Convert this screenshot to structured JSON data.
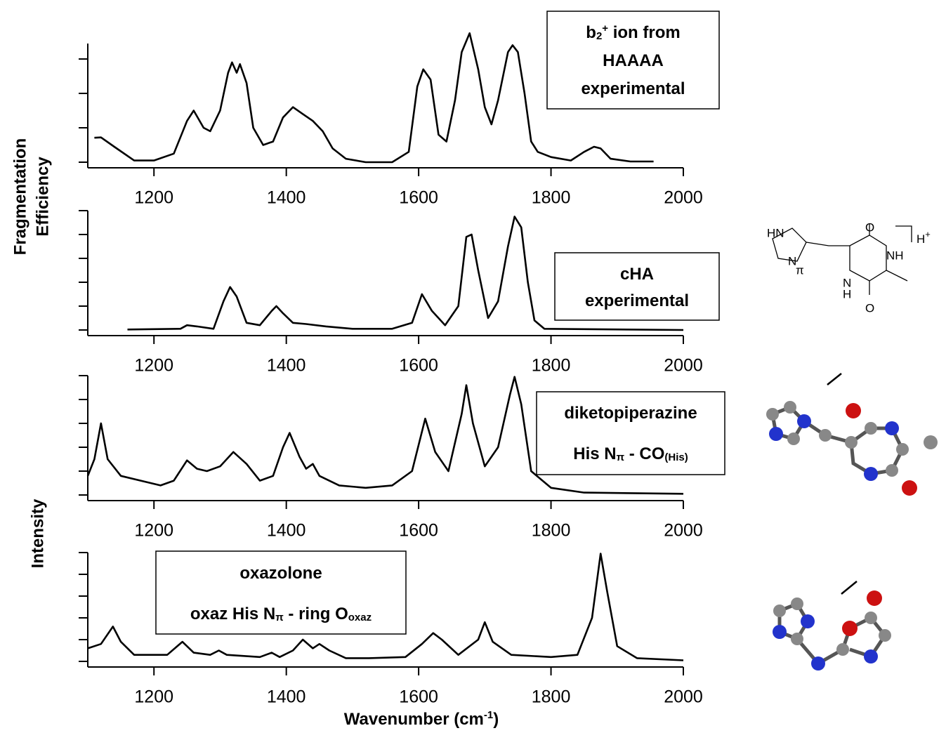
{
  "chart_data": [
    {
      "type": "line",
      "ylabel": [
        "Fragmentation",
        "Efficiency"
      ],
      "annotation": [
        [
          {
            "text": "b"
          },
          {
            "text": "2",
            "style": "sub"
          },
          {
            "text": "+",
            "style": "sup"
          },
          {
            "text": " ion from"
          }
        ],
        [
          {
            "text": "HAAAA"
          }
        ],
        [
          {
            "text": "experimental"
          }
        ]
      ],
      "xlim": [
        1100,
        2000
      ],
      "xticks": [
        1200,
        1400,
        1600,
        1800,
        2000
      ],
      "ylim": [
        0,
        3.45
      ],
      "yticks": [
        0,
        1,
        2,
        3
      ],
      "color": "#000000",
      "x": [
        1110,
        1120,
        1140,
        1170,
        1200,
        1230,
        1250,
        1260,
        1275,
        1285,
        1300,
        1312,
        1318,
        1325,
        1330,
        1340,
        1350,
        1365,
        1380,
        1395,
        1410,
        1425,
        1440,
        1455,
        1470,
        1490,
        1520,
        1560,
        1585,
        1598,
        1607,
        1618,
        1630,
        1642,
        1655,
        1665,
        1677,
        1690,
        1700,
        1710,
        1720,
        1735,
        1742,
        1750,
        1760,
        1770,
        1780,
        1800,
        1830,
        1850,
        1865,
        1875,
        1890,
        1920,
        1955
      ],
      "values": [
        0.71,
        0.72,
        0.45,
        0.05,
        0.05,
        0.25,
        1.2,
        1.5,
        1.0,
        0.9,
        1.5,
        2.6,
        2.9,
        2.6,
        2.85,
        2.3,
        1.0,
        0.5,
        0.6,
        1.3,
        1.6,
        1.4,
        1.2,
        0.9,
        0.4,
        0.1,
        0.0,
        0.0,
        0.3,
        2.2,
        2.7,
        2.4,
        0.8,
        0.6,
        1.8,
        3.2,
        3.75,
        2.7,
        1.6,
        1.1,
        1.8,
        3.2,
        3.4,
        3.2,
        2.0,
        0.6,
        0.3,
        0.15,
        0.05,
        0.3,
        0.45,
        0.4,
        0.1,
        0.02,
        0.02
      ]
    },
    {
      "type": "line",
      "annotation": [
        [
          {
            "text": "cHA"
          }
        ],
        [
          {
            "text": "experimental"
          }
        ]
      ],
      "xlim": [
        1100,
        2000
      ],
      "xticks": [
        1200,
        1400,
        1600,
        1800,
        2000
      ],
      "ylim": [
        0,
        5
      ],
      "yticks": [
        0,
        1,
        2,
        3,
        4,
        5
      ],
      "color": "#000000",
      "x": [
        1160,
        1240,
        1250,
        1265,
        1290,
        1305,
        1315,
        1325,
        1340,
        1360,
        1378,
        1385,
        1395,
        1410,
        1430,
        1460,
        1500,
        1560,
        1590,
        1605,
        1620,
        1640,
        1660,
        1672,
        1680,
        1690,
        1705,
        1720,
        1735,
        1745,
        1755,
        1765,
        1775,
        1790,
        2000
      ],
      "values": [
        0.02,
        0.05,
        0.2,
        0.15,
        0.05,
        1.2,
        1.8,
        1.4,
        0.3,
        0.2,
        0.8,
        1.0,
        0.7,
        0.3,
        0.25,
        0.15,
        0.05,
        0.05,
        0.3,
        1.5,
        0.8,
        0.2,
        1.0,
        3.9,
        4.0,
        2.5,
        0.5,
        1.2,
        3.5,
        4.75,
        4.3,
        2.0,
        0.4,
        0.05,
        0.0
      ]
    },
    {
      "type": "line",
      "ylabel": [
        "Intensity"
      ],
      "annotation": [
        [
          {
            "text": "diketopiperazine"
          }
        ],
        [
          {
            "text": "His N"
          },
          {
            "text": "π",
            "style": "sub"
          },
          {
            "text": " - CO"
          },
          {
            "text": "(His)",
            "style": "sub"
          }
        ]
      ],
      "xlim": [
        1100,
        2000
      ],
      "xticks": [
        1200,
        1400,
        1600,
        1800,
        2000
      ],
      "ylim": [
        0,
        5
      ],
      "yticks": [
        0,
        1,
        2,
        3,
        4,
        5
      ],
      "color": "#000000",
      "x": [
        1100,
        1110,
        1120,
        1130,
        1150,
        1180,
        1210,
        1230,
        1250,
        1265,
        1280,
        1300,
        1320,
        1340,
        1360,
        1380,
        1395,
        1405,
        1420,
        1430,
        1440,
        1450,
        1480,
        1520,
        1560,
        1590,
        1610,
        1625,
        1645,
        1665,
        1672,
        1682,
        1700,
        1720,
        1738,
        1745,
        1755,
        1770,
        1800,
        1850,
        2000
      ],
      "values": [
        0.8,
        1.5,
        3.0,
        1.5,
        0.8,
        0.6,
        0.4,
        0.6,
        1.45,
        1.1,
        1.0,
        1.2,
        1.8,
        1.3,
        0.6,
        0.8,
        2.0,
        2.6,
        1.6,
        1.1,
        1.3,
        0.8,
        0.4,
        0.3,
        0.4,
        1.0,
        3.2,
        1.8,
        1.0,
        3.4,
        4.6,
        3.0,
        1.2,
        2.0,
        4.2,
        4.95,
        3.8,
        1.0,
        0.3,
        0.1,
        0.05
      ]
    },
    {
      "type": "line",
      "xlabel": [
        {
          "text": "Wavenumber (cm"
        },
        {
          "text": "-1",
          "style": "sup"
        },
        {
          "text": ")"
        }
      ],
      "annotation": [
        [
          {
            "text": "oxazolone"
          }
        ],
        [
          {
            "text": "oxaz His N"
          },
          {
            "text": "π",
            "style": "sub"
          },
          {
            "text": " - ring O"
          },
          {
            "text": "oxaz",
            "style": "sub"
          }
        ]
      ],
      "xlim": [
        1100,
        2000
      ],
      "xticks": [
        1200,
        1400,
        1600,
        1800,
        2000
      ],
      "ylim": [
        0,
        5
      ],
      "yticks": [
        0,
        1,
        2,
        3,
        4,
        5
      ],
      "color": "#000000",
      "x": [
        1100,
        1120,
        1138,
        1150,
        1170,
        1220,
        1243,
        1260,
        1285,
        1298,
        1310,
        1360,
        1378,
        1390,
        1410,
        1425,
        1440,
        1450,
        1465,
        1490,
        1525,
        1580,
        1605,
        1622,
        1635,
        1660,
        1690,
        1700,
        1712,
        1740,
        1800,
        1840,
        1862,
        1875,
        1885,
        1900,
        1930,
        2000
      ],
      "values": [
        0.6,
        0.8,
        1.6,
        0.9,
        0.3,
        0.3,
        0.9,
        0.4,
        0.3,
        0.5,
        0.3,
        0.2,
        0.4,
        0.2,
        0.5,
        1.0,
        0.6,
        0.8,
        0.5,
        0.15,
        0.15,
        0.2,
        0.8,
        1.3,
        1.0,
        0.3,
        1.0,
        1.8,
        0.9,
        0.3,
        0.2,
        0.3,
        2.0,
        4.95,
        3.2,
        0.7,
        0.15,
        0.05
      ]
    }
  ],
  "structure": {
    "labels": [
      "HN",
      "N",
      "π",
      "O",
      "NH",
      "N",
      "H",
      "O",
      "H",
      "+"
    ]
  }
}
